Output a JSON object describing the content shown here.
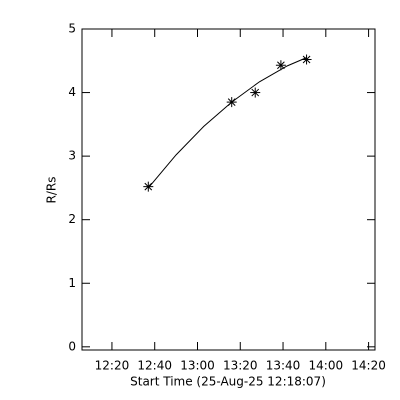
{
  "chart_data": {
    "type": "scatter",
    "x_label": "Start Time (25-Aug-25 12:18:07)",
    "y_label": "R/Rs",
    "xlim": [
      726,
      863
    ],
    "xticks": [
      {
        "value": 740,
        "label": "12:20"
      },
      {
        "value": 760,
        "label": "12:40"
      },
      {
        "value": 780,
        "label": "13:00"
      },
      {
        "value": 800,
        "label": "13:20"
      },
      {
        "value": 820,
        "label": "13:40"
      },
      {
        "value": 840,
        "label": "14:00"
      },
      {
        "value": 860,
        "label": "14:20"
      }
    ],
    "ylim": [
      -0.05,
      5
    ],
    "yticks": [
      0,
      1,
      2,
      3,
      4,
      5
    ],
    "color": "#000000",
    "series": [
      {
        "x": [
          757,
          796,
          807,
          819,
          831
        ],
        "values": [
          2.52,
          3.85,
          4.0,
          4.43,
          4.52
        ]
      }
    ],
    "fit": {
      "x": [
        757,
        770,
        783,
        796,
        809,
        822,
        831
      ],
      "values": [
        2.5,
        3.02,
        3.47,
        3.85,
        4.17,
        4.42,
        4.55
      ]
    }
  }
}
